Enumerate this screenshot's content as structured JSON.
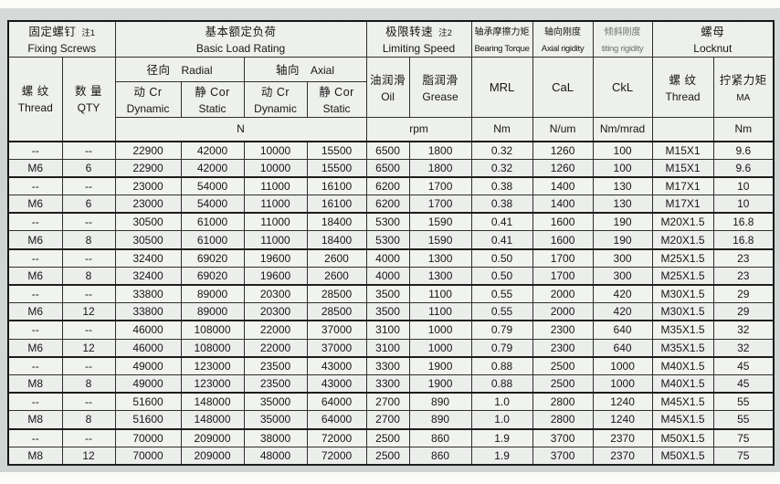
{
  "colors": {
    "paper": "#ced5d3",
    "cell": "#f1f3ef",
    "border": "#151515",
    "text": "#161616"
  },
  "table": {
    "header": {
      "fixing_screws": {
        "zh": "固定螺钉",
        "note": "注1",
        "en": "Fixing Screws"
      },
      "basic_load_rating": {
        "zh": "基本额定负荷",
        "en": "Basic Load Rating"
      },
      "limiting_speed": {
        "zh": "极限转速",
        "note": "注2",
        "en": "Limiting Speed"
      },
      "bearing_torque": {
        "zh": "轴承摩擦力矩",
        "en": "Bearing Torque"
      },
      "axial_rigidity": {
        "zh": "轴向刚度",
        "en": "Axial rigidity"
      },
      "tilting_rigidity": {
        "zh": "倾斜刚度",
        "en": "titing rigidity"
      },
      "locknut": {
        "zh": "螺母",
        "en": "Locknut"
      }
    },
    "subheader": {
      "thread": {
        "zh": "螺 纹",
        "en": "Thread"
      },
      "qty": {
        "zh": "数 量",
        "en": "QTY"
      },
      "radial": {
        "zh": "径向",
        "en": "Radial"
      },
      "axial": {
        "zh": "轴向",
        "en": "Axial"
      },
      "dynamic": {
        "zh": "动 Cr",
        "en": "Dynamic"
      },
      "static": {
        "zh": "静 Cor",
        "en": "Static"
      },
      "oil": {
        "zh": "油润滑",
        "en": "Oil"
      },
      "grease": {
        "zh": "脂润滑",
        "en": "Grease"
      },
      "mrl": "MRL",
      "cal": "CaL",
      "ckl": "CkL",
      "locknut_thread": {
        "zh": "螺 纹",
        "en": "Thread"
      },
      "ma": {
        "zh": "拧紧力矩",
        "en": "MA"
      }
    },
    "units": {
      "load": "N",
      "speed": "rpm",
      "torque": "Nm",
      "axial_rigidity": "N/um",
      "tilting_rigidity": "Nm/mrad",
      "ma": "Nm"
    },
    "rows": [
      [
        "--",
        "--",
        "22900",
        "42000",
        "10000",
        "15500",
        "6500",
        "1800",
        "0.32",
        "1260",
        "100",
        "M15X1",
        "9.6"
      ],
      [
        "M6",
        "6",
        "22900",
        "42000",
        "10000",
        "15500",
        "6500",
        "1800",
        "0.32",
        "1260",
        "100",
        "M15X1",
        "9.6"
      ],
      [
        "--",
        "--",
        "23000",
        "54000",
        "11000",
        "16100",
        "6200",
        "1700",
        "0.38",
        "1400",
        "130",
        "M17X1",
        "10"
      ],
      [
        "M6",
        "6",
        "23000",
        "54000",
        "11000",
        "16100",
        "6200",
        "1700",
        "0.38",
        "1400",
        "130",
        "M17X1",
        "10"
      ],
      [
        "--",
        "--",
        "30500",
        "61000",
        "11000",
        "18400",
        "5300",
        "1590",
        "0.41",
        "1600",
        "190",
        "M20X1.5",
        "16.8"
      ],
      [
        "M6",
        "8",
        "30500",
        "61000",
        "11000",
        "18400",
        "5300",
        "1590",
        "0.41",
        "1600",
        "190",
        "M20X1.5",
        "16.8"
      ],
      [
        "--",
        "--",
        "32400",
        "69020",
        "19600",
        "2600",
        "4000",
        "1300",
        "0.50",
        "1700",
        "300",
        "M25X1.5",
        "23"
      ],
      [
        "M6",
        "8",
        "32400",
        "69020",
        "19600",
        "2600",
        "4000",
        "1300",
        "0.50",
        "1700",
        "300",
        "M25X1.5",
        "23"
      ],
      [
        "--",
        "--",
        "33800",
        "89000",
        "20300",
        "28500",
        "3500",
        "1100",
        "0.55",
        "2000",
        "420",
        "M30X1.5",
        "29"
      ],
      [
        "M6",
        "12",
        "33800",
        "89000",
        "20300",
        "28500",
        "3500",
        "1100",
        "0.55",
        "2000",
        "420",
        "M30X1.5",
        "29"
      ],
      [
        "--",
        "--",
        "46000",
        "108000",
        "22000",
        "37000",
        "3100",
        "1000",
        "0.79",
        "2300",
        "640",
        "M35X1.5",
        "32"
      ],
      [
        "M6",
        "12",
        "46000",
        "108000",
        "22000",
        "37000",
        "3100",
        "1000",
        "0.79",
        "2300",
        "640",
        "M35X1.5",
        "32"
      ],
      [
        "--",
        "--",
        "49000",
        "123000",
        "23500",
        "43000",
        "3300",
        "1900",
        "0.88",
        "2500",
        "1000",
        "M40X1.5",
        "45"
      ],
      [
        "M8",
        "8",
        "49000",
        "123000",
        "23500",
        "43000",
        "3300",
        "1900",
        "0.88",
        "2500",
        "1000",
        "M40X1.5",
        "45"
      ],
      [
        "--",
        "--",
        "51600",
        "148000",
        "35000",
        "64000",
        "2700",
        "890",
        "1.0",
        "2800",
        "1240",
        "M45X1.5",
        "55"
      ],
      [
        "M8",
        "8",
        "51600",
        "148000",
        "35000",
        "64000",
        "2700",
        "890",
        "1.0",
        "2800",
        "1240",
        "M45X1.5",
        "55"
      ],
      [
        "--",
        "--",
        "70000",
        "209000",
        "38000",
        "72000",
        "2500",
        "860",
        "1.9",
        "3700",
        "2370",
        "M50X1.5",
        "75"
      ],
      [
        "M8",
        "12",
        "70000",
        "209000",
        "48000",
        "72000",
        "2500",
        "860",
        "1.9",
        "3700",
        "2370",
        "M50X1.5",
        "75"
      ]
    ]
  }
}
